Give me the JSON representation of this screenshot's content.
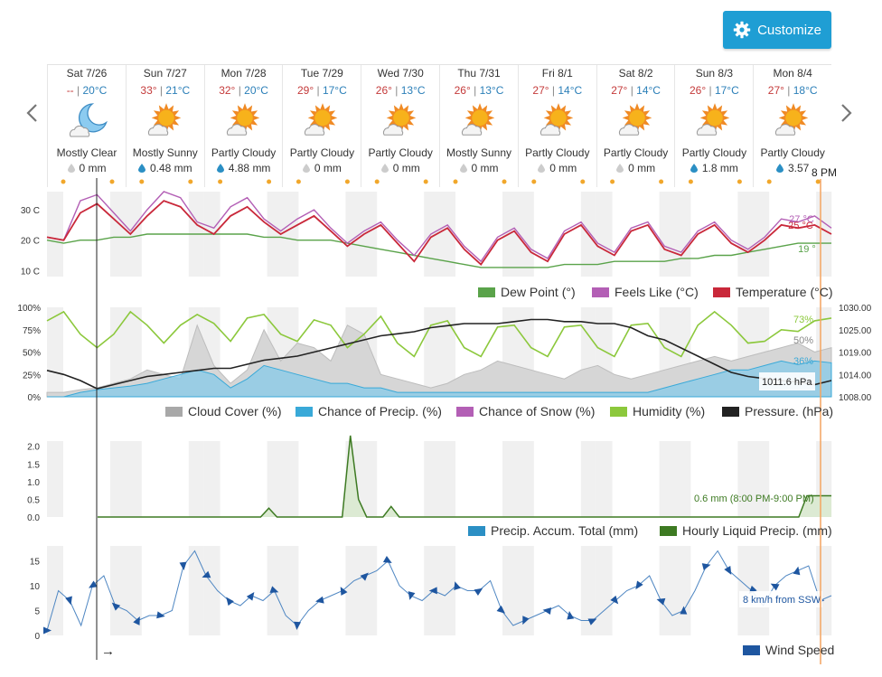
{
  "header": {
    "customize_label": "Customize"
  },
  "nav": {
    "prev_icon": "chevron-left-icon",
    "next_icon": "chevron-right-icon"
  },
  "days": [
    {
      "date": "Sat 7/26",
      "hi": "--",
      "lo": "20°C",
      "icon": "moon-cloud-icon",
      "condition": "Mostly Clear",
      "precip": "0 mm",
      "rain": false
    },
    {
      "date": "Sun 7/27",
      "hi": "33°",
      "lo": "21°C",
      "icon": "sun-cloud-icon",
      "condition": "Mostly Sunny",
      "precip": "0.48 mm",
      "rain": true
    },
    {
      "date": "Mon 7/28",
      "hi": "32°",
      "lo": "20°C",
      "icon": "sun-cloud-icon",
      "condition": "Partly Cloudy",
      "precip": "4.88 mm",
      "rain": true
    },
    {
      "date": "Tue 7/29",
      "hi": "29°",
      "lo": "17°C",
      "icon": "sun-cloud-icon",
      "condition": "Partly Cloudy",
      "precip": "0 mm",
      "rain": false
    },
    {
      "date": "Wed 7/30",
      "hi": "26°",
      "lo": "13°C",
      "icon": "sun-cloud-icon",
      "condition": "Partly Cloudy",
      "precip": "0 mm",
      "rain": false
    },
    {
      "date": "Thu 7/31",
      "hi": "26°",
      "lo": "13°C",
      "icon": "sun-cloud-icon",
      "condition": "Mostly Sunny",
      "precip": "0 mm",
      "rain": false
    },
    {
      "date": "Fri 8/1",
      "hi": "27°",
      "lo": "14°C",
      "icon": "sun-cloud-icon",
      "condition": "Partly Cloudy",
      "precip": "0 mm",
      "rain": false
    },
    {
      "date": "Sat 8/2",
      "hi": "27°",
      "lo": "14°C",
      "icon": "sun-cloud-icon",
      "condition": "Partly Cloudy",
      "precip": "0 mm",
      "rain": false
    },
    {
      "date": "Sun 8/3",
      "hi": "26°",
      "lo": "17°C",
      "icon": "sun-cloud-icon",
      "condition": "Partly Cloudy",
      "precip": "1.8 mm",
      "rain": true
    },
    {
      "date": "Mon 8/4",
      "hi": "27°",
      "lo": "18°C",
      "icon": "sun-cloud-icon",
      "condition": "Partly Cloudy",
      "precip": "3.57",
      "rain": true
    }
  ],
  "marker": {
    "label": "8 PM"
  },
  "chart_data": [
    {
      "type": "line",
      "y_ticks": [
        "30 C",
        "20 C",
        "10 C"
      ],
      "ylim": [
        8,
        36
      ],
      "series": [
        {
          "name": "Dew Point (°)",
          "color": "#5aa34a",
          "end_label": "19 °",
          "values": [
            20,
            19,
            20,
            20,
            21,
            21,
            22,
            22,
            22,
            22,
            22,
            22,
            22,
            21,
            21,
            20,
            20,
            20,
            19,
            18,
            17,
            16,
            15,
            14,
            13,
            12,
            11,
            11,
            11,
            11,
            11,
            12,
            12,
            12,
            13,
            13,
            13,
            13,
            14,
            14,
            15,
            15,
            16,
            17,
            18,
            19,
            19,
            19
          ]
        },
        {
          "name": "Feels Like (°C)",
          "color": "#b35fb5",
          "end_label": "27 °C",
          "values": [
            21,
            20,
            33,
            35,
            29,
            23,
            30,
            36,
            34,
            26,
            24,
            31,
            34,
            27,
            23,
            27,
            30,
            24,
            19,
            23,
            26,
            20,
            15,
            22,
            25,
            18,
            13,
            21,
            24,
            17,
            14,
            23,
            26,
            19,
            16,
            24,
            26,
            18,
            16,
            23,
            26,
            20,
            17,
            21,
            27,
            26,
            28,
            24
          ]
        },
        {
          "name": "Temperature (°C)",
          "color": "#c9283a",
          "end_label": "25 °C",
          "values": [
            21,
            20,
            29,
            32,
            27,
            22,
            28,
            33,
            31,
            25,
            22,
            28,
            31,
            26,
            22,
            25,
            28,
            23,
            18,
            22,
            25,
            19,
            13,
            21,
            24,
            17,
            12,
            20,
            23,
            16,
            13,
            22,
            25,
            18,
            15,
            23,
            25,
            17,
            15,
            22,
            25,
            19,
            16,
            20,
            25,
            24,
            25,
            22
          ]
        }
      ]
    },
    {
      "type": "line",
      "y_ticks_left": [
        "100%",
        "75%",
        "50%",
        "25%",
        "0%"
      ],
      "y_ticks_right": [
        "1030.00",
        "1025.00",
        "1019.00",
        "1014.00",
        "1008.00"
      ],
      "ylim_right": [
        1008,
        1030
      ],
      "series": [
        {
          "name": "Cloud Cover (%)",
          "color": "#a8a8a8",
          "end_label": "50%",
          "values": [
            5,
            5,
            8,
            10,
            15,
            20,
            30,
            25,
            20,
            80,
            35,
            15,
            30,
            75,
            40,
            60,
            55,
            40,
            80,
            70,
            25,
            20,
            15,
            10,
            15,
            25,
            30,
            40,
            35,
            30,
            25,
            20,
            30,
            35,
            25,
            20,
            25,
            30,
            35,
            40,
            45,
            40,
            45,
            50,
            55,
            60,
            50,
            55
          ]
        },
        {
          "name": "Chance of Precip. (%)",
          "color": "#39a9d8",
          "end_label": "36%",
          "values": [
            0,
            0,
            5,
            8,
            10,
            12,
            15,
            20,
            25,
            30,
            25,
            10,
            20,
            35,
            30,
            25,
            20,
            15,
            15,
            10,
            10,
            5,
            5,
            5,
            5,
            5,
            5,
            5,
            5,
            5,
            5,
            5,
            5,
            5,
            5,
            5,
            5,
            10,
            15,
            20,
            25,
            30,
            30,
            35,
            40,
            36,
            40,
            38
          ]
        },
        {
          "name": "Chance of Snow (%)",
          "color": "#b35fb5",
          "values": []
        },
        {
          "name": "Humidity (%)",
          "color": "#8cc83c",
          "end_label": "73%",
          "values": [
            85,
            95,
            70,
            55,
            70,
            95,
            80,
            60,
            80,
            92,
            82,
            62,
            88,
            92,
            70,
            62,
            86,
            80,
            55,
            70,
            90,
            60,
            45,
            80,
            85,
            55,
            45,
            78,
            80,
            55,
            45,
            78,
            80,
            55,
            45,
            80,
            82,
            55,
            45,
            80,
            95,
            80,
            60,
            62,
            75,
            73,
            85,
            88
          ]
        },
        {
          "name": "Pressure. (hPa)",
          "color": "#222222",
          "end_label": "1011.6 hPa",
          "values": [
            1014.5,
            1013.5,
            1012,
            1010,
            1011,
            1012,
            1013,
            1013.5,
            1014,
            1014.5,
            1015,
            1015,
            1016,
            1017,
            1017.5,
            1018,
            1019,
            1020,
            1021,
            1022,
            1023,
            1023.5,
            1024,
            1025,
            1025.5,
            1026,
            1026,
            1026,
            1026.5,
            1027,
            1027,
            1026.5,
            1026.5,
            1026,
            1026,
            1025,
            1023,
            1022,
            1020,
            1018,
            1016,
            1014,
            1013,
            1012.5,
            1012,
            1011.6,
            1011,
            1012
          ]
        }
      ]
    },
    {
      "type": "area",
      "y_ticks": [
        "2.0",
        "1.5",
        "1.0",
        "0.5",
        "0.0"
      ],
      "ylim": [
        0,
        2.4
      ],
      "series": [
        {
          "name": "Precip. Accum. Total (mm)",
          "color": "#2b8fc4",
          "values": []
        },
        {
          "name": "Hourly Liquid Precip. (mm)",
          "color": "#3d7a22",
          "end_label": "0.6 mm (8:00 PM-9:00 PM)",
          "points": [
            [
              0,
              0
            ],
            [
              20,
              0
            ],
            [
              21,
              0.25
            ],
            [
              22,
              0
            ],
            [
              30,
              0
            ],
            [
              31,
              2.3
            ],
            [
              32,
              0.5
            ],
            [
              33,
              0
            ],
            [
              35,
              0
            ],
            [
              36,
              0.3
            ],
            [
              37,
              0
            ],
            [
              86,
              0
            ],
            [
              87,
              0.6
            ],
            [
              90,
              0.6
            ]
          ]
        }
      ]
    },
    {
      "type": "line",
      "y_ticks": [
        "15",
        "10",
        "5",
        "0"
      ],
      "ylim": [
        0,
        18
      ],
      "series": [
        {
          "name": "Wind Speed",
          "color": "#1e56a0",
          "end_label": "8 km/h from SSW",
          "values": [
            1,
            9,
            7,
            2,
            10,
            12,
            6,
            5,
            3,
            4,
            4,
            5,
            14,
            17,
            12,
            9,
            7,
            6,
            8,
            7,
            9,
            4,
            2,
            5,
            7,
            8,
            9,
            11,
            12,
            13,
            15,
            10,
            8,
            7,
            9,
            8,
            10,
            9,
            9,
            11,
            5,
            2,
            3,
            4,
            5,
            6,
            4,
            3,
            3,
            5,
            7,
            9,
            10,
            12,
            7,
            4,
            5,
            9,
            14,
            17,
            13,
            11,
            9,
            6,
            10,
            12,
            13,
            14,
            7,
            8
          ]
        }
      ]
    }
  ]
}
